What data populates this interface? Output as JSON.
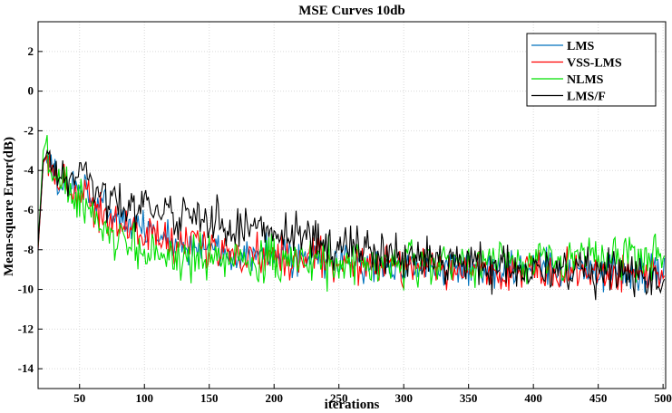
{
  "chart_data": {
    "type": "line",
    "title": "MSE Curves 10db",
    "xlabel": "iterations",
    "ylabel": "Mean-square Error(dB)",
    "xlim": [
      18,
      502
    ],
    "ylim": [
      -15,
      3.5
    ],
    "xticks": [
      50,
      100,
      150,
      200,
      250,
      300,
      350,
      400,
      450,
      500
    ],
    "yticks": [
      2,
      0,
      -2,
      -4,
      -6,
      -8,
      -10,
      -12,
      -14
    ],
    "grid": true,
    "legend_position": "top-right",
    "series": [
      {
        "name": "LMS",
        "color": "#0072BD",
        "anchors": [
          [
            18,
            -8.0
          ],
          [
            22,
            -3.6
          ],
          [
            25,
            -3.2
          ],
          [
            30,
            -4.2
          ],
          [
            40,
            -4.8
          ],
          [
            50,
            -5.0
          ],
          [
            55,
            -4.6
          ],
          [
            60,
            -5.5
          ],
          [
            70,
            -6.0
          ],
          [
            80,
            -6.5
          ],
          [
            100,
            -7.0
          ],
          [
            120,
            -7.5
          ],
          [
            150,
            -8.0
          ],
          [
            200,
            -8.3
          ],
          [
            250,
            -8.6
          ],
          [
            300,
            -8.8
          ],
          [
            350,
            -9.0
          ],
          [
            400,
            -9.0
          ],
          [
            450,
            -9.1
          ],
          [
            500,
            -9.2
          ]
        ],
        "noise": 0.7
      },
      {
        "name": "VSS-LMS",
        "color": "#FF0000",
        "anchors": [
          [
            18,
            -8.0
          ],
          [
            22,
            -3.6
          ],
          [
            25,
            -3.3
          ],
          [
            30,
            -4.2
          ],
          [
            40,
            -4.8
          ],
          [
            50,
            -5.2
          ],
          [
            55,
            -4.8
          ],
          [
            60,
            -5.8
          ],
          [
            70,
            -6.2
          ],
          [
            80,
            -6.8
          ],
          [
            100,
            -7.2
          ],
          [
            120,
            -7.6
          ],
          [
            150,
            -8.0
          ],
          [
            200,
            -8.3
          ],
          [
            250,
            -8.6
          ],
          [
            300,
            -8.8
          ],
          [
            350,
            -9.0
          ],
          [
            400,
            -9.1
          ],
          [
            450,
            -9.1
          ],
          [
            500,
            -9.2
          ]
        ],
        "noise": 0.75
      },
      {
        "name": "NLMS",
        "color": "#00E000",
        "anchors": [
          [
            18,
            -7.8
          ],
          [
            22,
            -3.0
          ],
          [
            24,
            -2.6
          ],
          [
            30,
            -4.4
          ],
          [
            40,
            -5.0
          ],
          [
            50,
            -5.5
          ],
          [
            60,
            -6.5
          ],
          [
            70,
            -7.0
          ],
          [
            80,
            -7.6
          ],
          [
            100,
            -8.0
          ],
          [
            120,
            -8.3
          ],
          [
            150,
            -8.5
          ],
          [
            200,
            -8.5
          ],
          [
            250,
            -8.7
          ],
          [
            300,
            -8.8
          ],
          [
            350,
            -8.7
          ],
          [
            400,
            -8.5
          ],
          [
            450,
            -8.3
          ],
          [
            500,
            -8.2
          ]
        ],
        "noise": 0.85
      },
      {
        "name": "LMS/F",
        "color": "#000000",
        "anchors": [
          [
            18,
            -7.8
          ],
          [
            22,
            -3.5
          ],
          [
            25,
            -3.2
          ],
          [
            30,
            -4.0
          ],
          [
            40,
            -4.6
          ],
          [
            50,
            -4.4
          ],
          [
            55,
            -3.8
          ],
          [
            60,
            -4.8
          ],
          [
            70,
            -5.2
          ],
          [
            80,
            -5.6
          ],
          [
            100,
            -5.9
          ],
          [
            120,
            -6.1
          ],
          [
            150,
            -6.5
          ],
          [
            200,
            -7.2
          ],
          [
            250,
            -7.8
          ],
          [
            300,
            -8.3
          ],
          [
            350,
            -8.7
          ],
          [
            400,
            -9.0
          ],
          [
            450,
            -9.2
          ],
          [
            500,
            -9.4
          ]
        ],
        "noise": 0.8
      }
    ]
  }
}
